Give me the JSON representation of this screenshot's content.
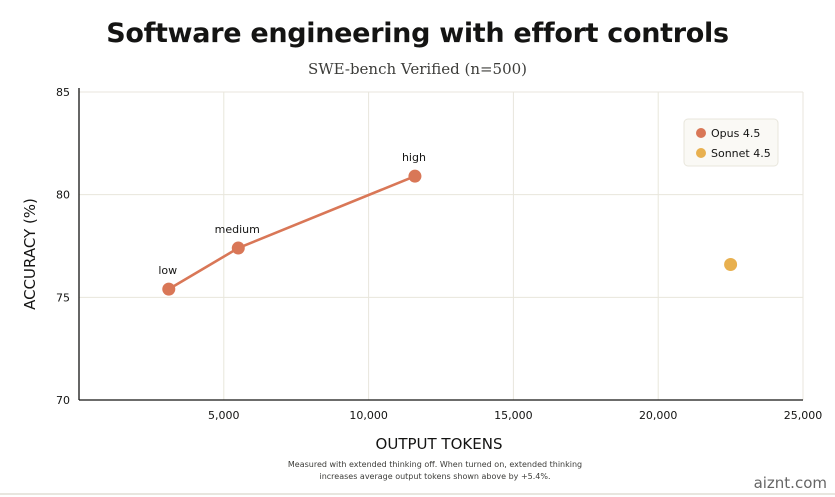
{
  "title": "Software engineering with effort controls",
  "subtitle": "SWE-bench Verified (n=500)",
  "footnote": {
    "line1": "Measured with extended thinking off. When turned on, extended thinking",
    "line2": "increases average output tokens shown above by +5.4%."
  },
  "watermark": "aiznt.com",
  "chart_data": {
    "type": "scatter",
    "xlabel": "OUTPUT TOKENS",
    "ylabel": "ACCURACY (%)",
    "xlim": [
      0,
      25000
    ],
    "ylim": [
      70,
      85
    ],
    "xticks": [
      5000,
      10000,
      15000,
      20000,
      25000
    ],
    "xtick_labels": [
      "5,000",
      "10,000",
      "15,000",
      "20,000",
      "25,000"
    ],
    "yticks": [
      70,
      75,
      80,
      85
    ],
    "ytick_labels": [
      "70",
      "75",
      "80",
      "85"
    ],
    "grid": true,
    "legend_position": "top-right",
    "series": [
      {
        "name": "Opus 4.5",
        "color": "#d97757",
        "connected": true,
        "points": [
          {
            "x": 3100,
            "y": 75.4,
            "label": "low"
          },
          {
            "x": 5500,
            "y": 77.4,
            "label": "medium"
          },
          {
            "x": 11600,
            "y": 80.9,
            "label": "high"
          }
        ]
      },
      {
        "name": "Sonnet 4.5",
        "color": "#e8b04f",
        "connected": false,
        "points": [
          {
            "x": 22500,
            "y": 76.6,
            "label": ""
          }
        ]
      }
    ]
  }
}
